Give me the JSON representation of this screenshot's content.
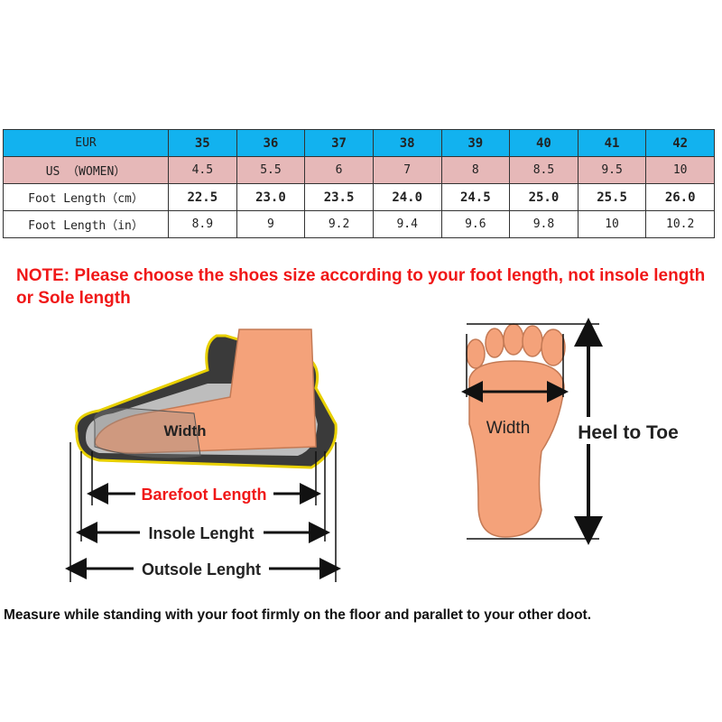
{
  "size_table": {
    "rows": [
      {
        "label": "EUR",
        "values": [
          "35",
          "36",
          "37",
          "38",
          "39",
          "40",
          "41",
          "42"
        ]
      },
      {
        "label": "US （WOMEN）",
        "values": [
          "4.5",
          "5.5",
          "6",
          "7",
          "8",
          "8.5",
          "9.5",
          "10"
        ]
      },
      {
        "label": "Foot Length（cm）",
        "values": [
          "22.5",
          "23.0",
          "23.5",
          "24.0",
          "24.5",
          "25.0",
          "25.5",
          "26.0"
        ]
      },
      {
        "label": "Foot Length（in）",
        "values": [
          "8.9",
          "9",
          "9.2",
          "9.4",
          "9.6",
          "9.8",
          "10",
          "10.2"
        ]
      }
    ]
  },
  "note": "NOTE:  Please choose the shoes size according to your foot length, not insole length or Sole length",
  "shoe_diagram": {
    "width": "Width",
    "barefoot_length": "Barefoot Length",
    "insole_length": "Insole Lenght",
    "outsole_length": "Outsole Lenght"
  },
  "foot_diagram": {
    "width": "Width",
    "heel_to_toe": "Heel to Toe"
  },
  "instruction": "Measure while standing with your foot firmly on the floor and parallet to your other doot.",
  "colors": {
    "header_blue": "#12b2ef",
    "us_row_pink": "#e6b8b8",
    "note_red": "#f01818",
    "skin": "#f4a27a",
    "barefoot_red": "#f01818"
  }
}
